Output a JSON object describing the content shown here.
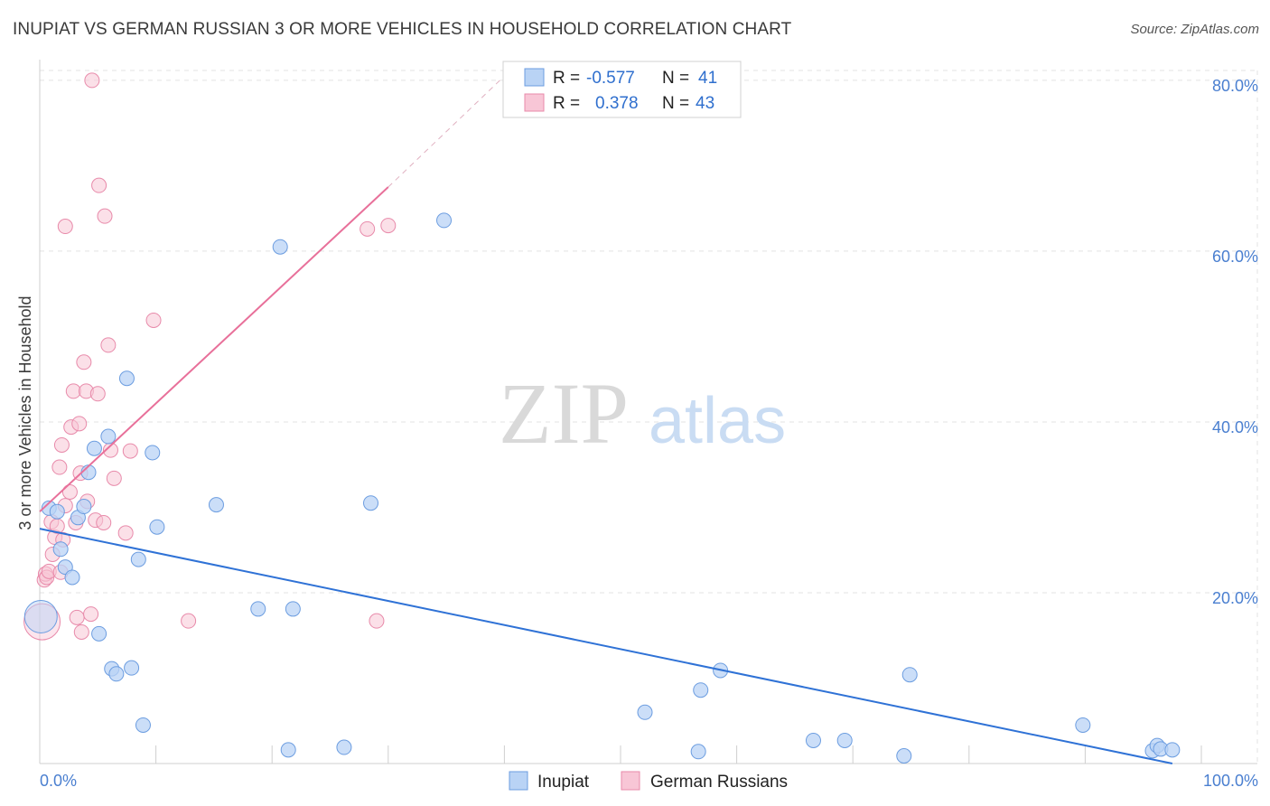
{
  "chart_data": {
    "type": "scatter",
    "title": "INUPIAT VS GERMAN RUSSIAN 3 OR MORE VEHICLES IN HOUSEHOLD CORRELATION CHART",
    "source": "Source: ZipAtlas.com",
    "xlabel": "",
    "ylabel": "3 or more Vehicles in Household",
    "xlim": [
      0,
      100
    ],
    "ylim": [
      0,
      82
    ],
    "x_tick_labels": [
      "0.0%",
      "100.0%"
    ],
    "y_ticks": [
      20,
      40,
      60,
      80
    ],
    "y_tick_labels": [
      "20.0%",
      "40.0%",
      "60.0%",
      "80.0%"
    ],
    "watermark": {
      "zip": "ZIP",
      "atlas": "atlas"
    },
    "legend_box": {
      "rows": [
        {
          "r_label": "R = ",
          "r_value": "-0.577",
          "n_label": "N = ",
          "n_value": "41"
        },
        {
          "r_label": "R = ",
          "r_value": "0.378",
          "n_label": "N = ",
          "n_value": "43"
        }
      ]
    },
    "colors": {
      "inupiat_fill": "#b9d3f5",
      "inupiat_stroke": "#6c9de0",
      "inupiat_line": "#2f72d6",
      "german_fill": "#f8c6d6",
      "german_stroke": "#e88aaa",
      "german_line": "#e8709a",
      "grid": "#e3e3e3",
      "tick_text": "#4a7fd0"
    },
    "series": [
      {
        "name": "Inupiat",
        "r": -0.577,
        "n": 41,
        "trend": {
          "x0": 0,
          "y0": 27.5,
          "x1": 97.5,
          "y1": 0.0
        },
        "points": [
          [
            0.1,
            17.2
          ],
          [
            0.8,
            29.9
          ],
          [
            1.5,
            29.5
          ],
          [
            1.8,
            25.1
          ],
          [
            2.2,
            23.0
          ],
          [
            2.8,
            21.8
          ],
          [
            3.3,
            28.8
          ],
          [
            3.8,
            30.1
          ],
          [
            4.2,
            34.1
          ],
          [
            4.7,
            36.9
          ],
          [
            5.1,
            15.2
          ],
          [
            5.9,
            38.3
          ],
          [
            6.2,
            11.1
          ],
          [
            6.6,
            10.5
          ],
          [
            7.5,
            45.1
          ],
          [
            7.9,
            11.2
          ],
          [
            8.5,
            23.9
          ],
          [
            8.9,
            4.5
          ],
          [
            9.7,
            36.4
          ],
          [
            10.1,
            27.7
          ],
          [
            15.2,
            30.3
          ],
          [
            18.8,
            18.1
          ],
          [
            20.7,
            60.5
          ],
          [
            21.4,
            1.6
          ],
          [
            21.8,
            18.1
          ],
          [
            26.2,
            1.9
          ],
          [
            28.5,
            30.5
          ],
          [
            34.8,
            63.6
          ],
          [
            52.1,
            6.0
          ],
          [
            56.7,
            1.4
          ],
          [
            56.9,
            8.6
          ],
          [
            58.6,
            10.9
          ],
          [
            66.6,
            2.7
          ],
          [
            69.3,
            2.7
          ],
          [
            74.4,
            0.9
          ],
          [
            74.9,
            10.4
          ],
          [
            89.8,
            4.5
          ],
          [
            95.8,
            1.5
          ],
          [
            96.2,
            2.1
          ],
          [
            96.5,
            1.7
          ],
          [
            97.5,
            1.6
          ]
        ]
      },
      {
        "name": "German Russians",
        "r": 0.378,
        "n": 43,
        "trend": {
          "x0": 0,
          "y0": 29.5,
          "x1": 30,
          "y1": 67.5
        },
        "trend_ext": {
          "x0": 30,
          "y0": 67.5,
          "x1": 40,
          "y1": 80.5
        },
        "points": [
          [
            0.2,
            16.6
          ],
          [
            0.4,
            21.5
          ],
          [
            0.5,
            22.2
          ],
          [
            0.6,
            21.8
          ],
          [
            0.8,
            22.5
          ],
          [
            1.0,
            28.3
          ],
          [
            1.1,
            24.5
          ],
          [
            1.3,
            26.5
          ],
          [
            1.5,
            27.8
          ],
          [
            1.7,
            34.7
          ],
          [
            1.8,
            22.4
          ],
          [
            1.9,
            37.3
          ],
          [
            2.0,
            26.2
          ],
          [
            2.2,
            62.9
          ],
          [
            2.2,
            30.2
          ],
          [
            2.6,
            31.8
          ],
          [
            2.7,
            39.4
          ],
          [
            2.9,
            43.6
          ],
          [
            3.1,
            28.2
          ],
          [
            3.2,
            17.1
          ],
          [
            3.4,
            39.8
          ],
          [
            3.5,
            34.0
          ],
          [
            3.6,
            15.4
          ],
          [
            3.8,
            47.0
          ],
          [
            4.0,
            43.6
          ],
          [
            4.1,
            30.7
          ],
          [
            4.4,
            17.5
          ],
          [
            4.5,
            80.0
          ],
          [
            4.8,
            28.5
          ],
          [
            5.0,
            43.3
          ],
          [
            5.1,
            67.7
          ],
          [
            5.5,
            28.2
          ],
          [
            5.6,
            64.1
          ],
          [
            5.9,
            49.0
          ],
          [
            6.1,
            36.7
          ],
          [
            6.4,
            33.4
          ],
          [
            7.4,
            27.0
          ],
          [
            7.8,
            36.6
          ],
          [
            9.8,
            51.9
          ],
          [
            12.8,
            16.7
          ],
          [
            28.2,
            62.6
          ],
          [
            29.0,
            16.7
          ],
          [
            30.0,
            63.0
          ]
        ]
      }
    ],
    "bottom_legend": [
      "Inupiat",
      "German Russians"
    ]
  }
}
